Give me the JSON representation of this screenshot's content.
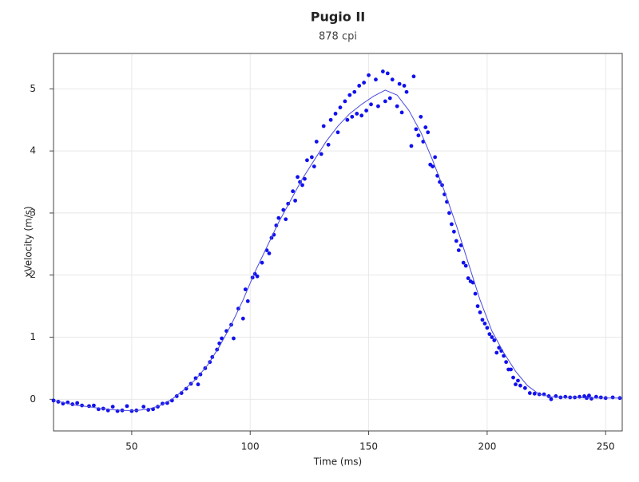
{
  "chart_data": {
    "type": "scatter",
    "title": "Pugio II",
    "subtitle": "878 cpi",
    "x_label": "Time (ms)",
    "y_label": "xVelocity (m/s)",
    "xlim": [
      17,
      257
    ],
    "ylim": [
      -0.51,
      5.57
    ],
    "xticks": [
      50,
      100,
      150,
      200,
      250
    ],
    "yticks": [
      0,
      1,
      2,
      3,
      4,
      5
    ],
    "grid": true,
    "series": [
      {
        "kind": "scatter",
        "color": "#1010ee",
        "x": [
          17,
          19,
          21,
          23,
          25,
          27,
          29,
          32,
          34,
          36,
          38,
          40,
          42,
          44,
          46,
          48,
          50,
          52,
          55,
          57,
          59,
          61,
          63,
          65,
          67,
          69,
          71,
          73,
          75,
          77,
          78,
          79,
          81,
          83,
          84,
          86,
          87,
          88,
          90,
          92,
          93,
          95,
          97,
          98,
          99,
          101,
          102,
          103,
          105,
          107,
          108,
          109,
          110,
          111,
          112,
          114,
          115,
          116,
          118,
          119,
          120,
          121,
          122,
          123,
          124,
          126,
          127,
          128,
          130,
          131,
          133,
          134,
          136,
          137,
          138,
          140,
          141,
          142,
          143,
          144,
          145,
          146,
          147,
          148,
          149,
          150,
          151,
          153,
          154,
          156,
          157,
          158,
          159,
          160,
          162,
          163,
          164,
          165,
          166,
          168,
          169,
          170,
          171,
          172,
          173,
          174,
          175,
          176,
          177,
          178,
          179,
          180,
          181,
          182,
          183,
          184,
          185,
          186,
          187,
          188,
          189,
          190,
          191,
          192,
          193,
          194,
          195,
          196,
          197,
          198,
          199,
          200,
          201,
          202,
          203,
          204,
          205,
          206,
          207,
          208,
          209,
          210,
          211,
          212,
          213,
          214,
          216,
          218,
          220,
          222,
          224,
          226,
          227,
          229,
          231,
          233,
          235,
          237,
          239,
          241,
          242,
          243,
          244,
          246,
          248,
          250,
          253,
          256
        ],
        "values": [
          -0.02,
          -0.04,
          -0.07,
          -0.05,
          -0.08,
          -0.06,
          -0.1,
          -0.11,
          -0.1,
          -0.16,
          -0.15,
          -0.18,
          -0.12,
          -0.19,
          -0.18,
          -0.11,
          -0.19,
          -0.18,
          -0.12,
          -0.17,
          -0.16,
          -0.12,
          -0.07,
          -0.06,
          -0.02,
          0.05,
          0.1,
          0.17,
          0.25,
          0.34,
          0.24,
          0.4,
          0.5,
          0.6,
          0.68,
          0.8,
          0.9,
          0.98,
          1.1,
          1.2,
          0.98,
          1.46,
          1.3,
          1.77,
          1.58,
          1.96,
          2.02,
          1.98,
          2.2,
          2.4,
          2.35,
          2.6,
          2.65,
          2.8,
          2.92,
          3.05,
          2.9,
          3.15,
          3.35,
          3.2,
          3.58,
          3.5,
          3.45,
          3.55,
          3.85,
          3.9,
          3.75,
          4.15,
          3.95,
          4.4,
          4.1,
          4.5,
          4.6,
          4.3,
          4.7,
          4.8,
          4.5,
          4.9,
          4.55,
          4.95,
          4.6,
          5.05,
          4.57,
          5.1,
          4.65,
          5.22,
          4.75,
          5.15,
          4.72,
          5.28,
          4.8,
          5.25,
          4.85,
          5.15,
          4.72,
          5.08,
          4.62,
          5.05,
          4.95,
          4.08,
          5.2,
          4.35,
          4.25,
          4.55,
          4.15,
          4.38,
          4.3,
          3.78,
          3.75,
          3.9,
          3.6,
          3.5,
          3.45,
          3.3,
          3.18,
          3.0,
          2.82,
          2.7,
          2.55,
          2.4,
          2.48,
          2.2,
          2.15,
          1.95,
          1.9,
          1.88,
          1.7,
          1.5,
          1.4,
          1.28,
          1.22,
          1.15,
          1.05,
          1.0,
          0.95,
          0.75,
          0.83,
          0.78,
          0.7,
          0.6,
          0.48,
          0.48,
          0.35,
          0.24,
          0.3,
          0.22,
          0.18,
          0.1,
          0.09,
          0.08,
          0.08,
          0.05,
          0.0,
          0.05,
          0.03,
          0.04,
          0.03,
          0.03,
          0.04,
          0.05,
          0.02,
          0.06,
          0.01,
          0.04,
          0.03,
          0.02,
          0.03,
          0.02
        ]
      },
      {
        "kind": "line",
        "color": "#4a4ae0",
        "x": [
          17,
          22,
          27,
          32,
          37,
          42,
          47,
          52,
          57,
          62,
          67,
          72,
          77,
          82,
          87,
          92,
          97,
          102,
          107,
          112,
          117,
          122,
          127,
          132,
          137,
          142,
          147,
          152,
          157,
          162,
          167,
          172,
          177,
          182,
          187,
          192,
          197,
          202,
          207,
          212,
          217,
          222,
          227,
          232,
          237,
          242,
          247,
          252,
          257
        ],
        "values": [
          -0.02,
          -0.06,
          -0.1,
          -0.12,
          -0.15,
          -0.17,
          -0.18,
          -0.18,
          -0.16,
          -0.1,
          0.0,
          0.15,
          0.32,
          0.55,
          0.85,
          1.2,
          1.6,
          2.05,
          2.45,
          2.85,
          3.2,
          3.55,
          3.85,
          4.15,
          4.4,
          4.6,
          4.75,
          4.88,
          4.98,
          4.9,
          4.65,
          4.3,
          3.85,
          3.35,
          2.8,
          2.2,
          1.6,
          1.1,
          0.75,
          0.45,
          0.22,
          0.08,
          0.04,
          0.03,
          0.03,
          0.02,
          0.02,
          0.02,
          0.02
        ]
      }
    ]
  }
}
